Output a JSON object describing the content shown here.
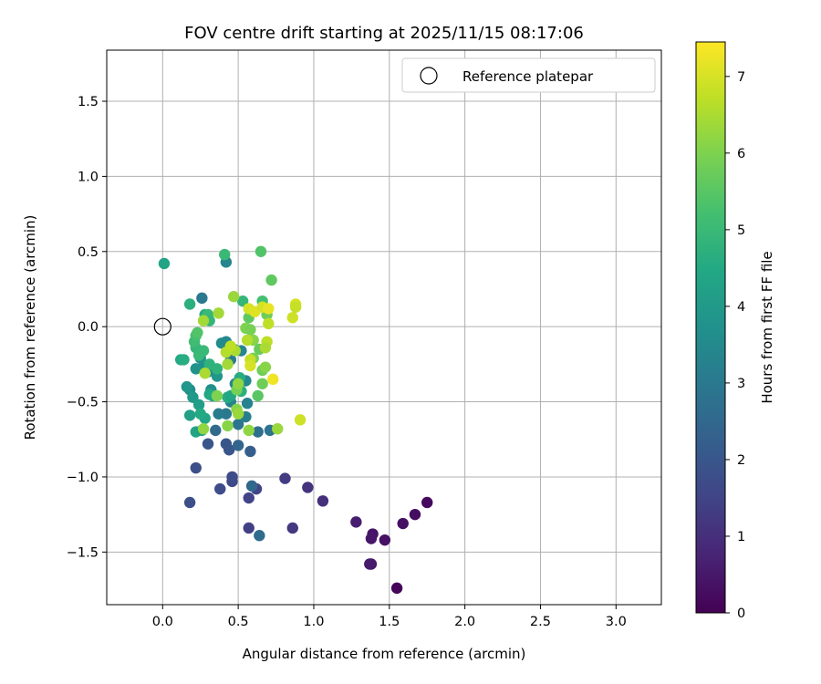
{
  "chart_data": {
    "type": "scatter",
    "title": "FOV centre drift starting at 2025/11/15 08:17:06",
    "xlabel": "Angular distance from reference (arcmin)",
    "ylabel": "Rotation from reference (arcmin)",
    "xlim": [
      -0.37,
      3.3
    ],
    "ylim": [
      -1.85,
      1.84
    ],
    "xticks": [
      0.0,
      0.5,
      1.0,
      1.5,
      2.0,
      2.5,
      3.0
    ],
    "xtick_labels": [
      "0.0",
      "0.5",
      "1.0",
      "1.5",
      "2.0",
      "2.5",
      "3.0"
    ],
    "yticks": [
      -1.5,
      -1.0,
      -0.5,
      0.0,
      0.5,
      1.0,
      1.5
    ],
    "ytick_labels": [
      "−1.5",
      "−1.0",
      "−0.5",
      "0.0",
      "0.5",
      "1.0",
      "1.5"
    ],
    "grid": true,
    "legend": {
      "position": "top-right",
      "entries": [
        "Reference platepar"
      ]
    },
    "reference_point": {
      "x": 0.0,
      "y": 0.0,
      "marker": "hollow-circle"
    },
    "colorbar": {
      "label": "Hours from first FF file",
      "range": [
        0,
        7.45
      ],
      "ticks": [
        0,
        1,
        2,
        3,
        4,
        5,
        6,
        7
      ],
      "tick_labels": [
        "0",
        "1",
        "2",
        "3",
        "4",
        "5",
        "6",
        "7"
      ],
      "colormap": "viridis"
    },
    "points": [
      {
        "x": 1.55,
        "y": -1.74,
        "t": 0.1
      },
      {
        "x": 1.75,
        "y": -1.17,
        "t": 0.2
      },
      {
        "x": 1.67,
        "y": -1.25,
        "t": 0.25
      },
      {
        "x": 1.59,
        "y": -1.31,
        "t": 0.3
      },
      {
        "x": 1.47,
        "y": -1.42,
        "t": 0.35
      },
      {
        "x": 1.39,
        "y": -1.38,
        "t": 0.4
      },
      {
        "x": 1.38,
        "y": -1.41,
        "t": 0.45
      },
      {
        "x": 1.38,
        "y": -1.58,
        "t": 0.5
      },
      {
        "x": 1.37,
        "y": -1.58,
        "t": 0.55
      },
      {
        "x": 1.28,
        "y": -1.3,
        "t": 0.6
      },
      {
        "x": 1.06,
        "y": -1.16,
        "t": 1.0
      },
      {
        "x": 0.96,
        "y": -1.07,
        "t": 1.1
      },
      {
        "x": 0.86,
        "y": -1.34,
        "t": 1.2
      },
      {
        "x": 0.81,
        "y": -1.01,
        "t": 1.3
      },
      {
        "x": 0.57,
        "y": -1.34,
        "t": 1.4
      },
      {
        "x": 0.57,
        "y": -1.14,
        "t": 1.5
      },
      {
        "x": 0.62,
        "y": -1.08,
        "t": 1.5
      },
      {
        "x": 0.46,
        "y": -1.03,
        "t": 1.6
      },
      {
        "x": 0.46,
        "y": -1.0,
        "t": 1.7
      },
      {
        "x": 0.38,
        "y": -1.08,
        "t": 1.7
      },
      {
        "x": 0.22,
        "y": -0.94,
        "t": 1.8
      },
      {
        "x": 0.18,
        "y": -1.17,
        "t": 1.8
      },
      {
        "x": 0.64,
        "y": -1.39,
        "t": 2.6
      },
      {
        "x": 0.59,
        "y": -1.06,
        "t": 2.5
      },
      {
        "x": 0.44,
        "y": -0.82,
        "t": 2.0
      },
      {
        "x": 0.42,
        "y": -0.78,
        "t": 2.0
      },
      {
        "x": 0.3,
        "y": -0.78,
        "t": 2.0
      },
      {
        "x": 0.5,
        "y": -0.79,
        "t": 2.4
      },
      {
        "x": 0.58,
        "y": -0.83,
        "t": 2.2
      },
      {
        "x": 0.35,
        "y": -0.69,
        "t": 2.6
      },
      {
        "x": 0.63,
        "y": -0.7,
        "t": 2.7
      },
      {
        "x": 0.71,
        "y": -0.69,
        "t": 2.8
      },
      {
        "x": 0.5,
        "y": -0.65,
        "t": 2.9
      },
      {
        "x": 0.42,
        "y": -0.58,
        "t": 3.0
      },
      {
        "x": 0.37,
        "y": -0.58,
        "t": 3.1
      },
      {
        "x": 0.55,
        "y": -0.6,
        "t": 3.2
      },
      {
        "x": 0.45,
        "y": -0.5,
        "t": 3.3
      },
      {
        "x": 0.56,
        "y": -0.51,
        "t": 3.3
      },
      {
        "x": 0.48,
        "y": -0.38,
        "t": 3.4
      },
      {
        "x": 0.55,
        "y": -0.36,
        "t": 3.5
      },
      {
        "x": 0.3,
        "y": -0.3,
        "t": 3.6
      },
      {
        "x": 0.27,
        "y": -0.27,
        "t": 3.7
      },
      {
        "x": 0.22,
        "y": -0.28,
        "t": 3.8
      },
      {
        "x": 0.25,
        "y": -0.21,
        "t": 3.8
      },
      {
        "x": 0.26,
        "y": 0.19,
        "t": 3.0
      },
      {
        "x": 0.42,
        "y": 0.43,
        "t": 3.4
      },
      {
        "x": 0.45,
        "y": -0.22,
        "t": 3.1
      },
      {
        "x": 0.47,
        "y": -0.15,
        "t": 3.2
      },
      {
        "x": 0.39,
        "y": -0.11,
        "t": 3.6
      },
      {
        "x": 0.42,
        "y": -0.1,
        "t": 3.5
      },
      {
        "x": 0.52,
        "y": -0.16,
        "t": 3.4
      },
      {
        "x": 0.36,
        "y": -0.33,
        "t": 3.9
      },
      {
        "x": 0.32,
        "y": -0.42,
        "t": 3.7
      },
      {
        "x": 0.18,
        "y": -0.42,
        "t": 3.7
      },
      {
        "x": 0.16,
        "y": -0.4,
        "t": 3.9
      },
      {
        "x": 0.2,
        "y": -0.47,
        "t": 4.0
      },
      {
        "x": 0.24,
        "y": -0.52,
        "t": 4.1
      },
      {
        "x": 0.18,
        "y": -0.59,
        "t": 4.2
      },
      {
        "x": 0.22,
        "y": -0.7,
        "t": 4.3
      },
      {
        "x": 0.26,
        "y": -0.69,
        "t": 4.1
      },
      {
        "x": 0.28,
        "y": -0.61,
        "t": 4.4
      },
      {
        "x": 0.25,
        "y": -0.58,
        "t": 4.5
      },
      {
        "x": 0.31,
        "y": -0.45,
        "t": 4.4
      },
      {
        "x": 0.33,
        "y": -0.46,
        "t": 4.5
      },
      {
        "x": 0.43,
        "y": -0.47,
        "t": 4.6
      },
      {
        "x": 0.45,
        "y": -0.46,
        "t": 4.4
      },
      {
        "x": 0.52,
        "y": -0.43,
        "t": 4.7
      },
      {
        "x": 0.51,
        "y": -0.34,
        "t": 4.6
      },
      {
        "x": 0.36,
        "y": -0.28,
        "t": 4.8
      },
      {
        "x": 0.31,
        "y": -0.25,
        "t": 4.8
      },
      {
        "x": 0.22,
        "y": -0.14,
        "t": 4.9
      },
      {
        "x": 0.24,
        "y": -0.19,
        "t": 5.0
      },
      {
        "x": 0.27,
        "y": -0.16,
        "t": 5.0
      },
      {
        "x": 0.21,
        "y": -0.1,
        "t": 5.1
      },
      {
        "x": 0.22,
        "y": -0.06,
        "t": 5.2
      },
      {
        "x": 0.23,
        "y": -0.04,
        "t": 5.4
      },
      {
        "x": 0.12,
        "y": -0.22,
        "t": 4.5
      },
      {
        "x": 0.14,
        "y": -0.22,
        "t": 4.6
      },
      {
        "x": 0.18,
        "y": 0.15,
        "t": 4.7
      },
      {
        "x": 0.01,
        "y": 0.42,
        "t": 4.3
      },
      {
        "x": 0.28,
        "y": 0.08,
        "t": 4.6
      },
      {
        "x": 0.3,
        "y": 0.08,
        "t": 5.0
      },
      {
        "x": 0.31,
        "y": 0.04,
        "t": 4.9
      },
      {
        "x": 0.41,
        "y": 0.48,
        "t": 5.0
      },
      {
        "x": 0.65,
        "y": 0.5,
        "t": 5.4
      },
      {
        "x": 0.72,
        "y": 0.31,
        "t": 5.6
      },
      {
        "x": 0.53,
        "y": 0.17,
        "t": 4.9
      },
      {
        "x": 0.66,
        "y": 0.17,
        "t": 5.2
      },
      {
        "x": 0.69,
        "y": 0.08,
        "t": 5.8
      },
      {
        "x": 0.57,
        "y": 0.06,
        "t": 5.6
      },
      {
        "x": 0.55,
        "y": -0.01,
        "t": 6.0
      },
      {
        "x": 0.58,
        "y": -0.02,
        "t": 5.9
      },
      {
        "x": 0.6,
        "y": -0.09,
        "t": 6.1
      },
      {
        "x": 0.64,
        "y": -0.15,
        "t": 5.7
      },
      {
        "x": 0.6,
        "y": -0.21,
        "t": 5.9
      },
      {
        "x": 0.66,
        "y": -0.29,
        "t": 5.8
      },
      {
        "x": 0.68,
        "y": -0.27,
        "t": 6.1
      },
      {
        "x": 0.63,
        "y": -0.46,
        "t": 5.5
      },
      {
        "x": 0.66,
        "y": -0.38,
        "t": 5.8
      },
      {
        "x": 0.49,
        "y": -0.42,
        "t": 5.9
      },
      {
        "x": 0.5,
        "y": -0.38,
        "t": 6.2
      },
      {
        "x": 0.49,
        "y": -0.55,
        "t": 6.1
      },
      {
        "x": 0.5,
        "y": -0.58,
        "t": 6.3
      },
      {
        "x": 0.43,
        "y": -0.66,
        "t": 6.1
      },
      {
        "x": 0.57,
        "y": -0.69,
        "t": 6.2
      },
      {
        "x": 0.76,
        "y": -0.68,
        "t": 6.3
      },
      {
        "x": 0.27,
        "y": -0.68,
        "t": 6.2
      },
      {
        "x": 0.28,
        "y": -0.31,
        "t": 6.5
      },
      {
        "x": 0.36,
        "y": -0.46,
        "t": 6.0
      },
      {
        "x": 0.43,
        "y": -0.25,
        "t": 6.4
      },
      {
        "x": 0.48,
        "y": -0.16,
        "t": 6.5
      },
      {
        "x": 0.42,
        "y": -0.17,
        "t": 6.6
      },
      {
        "x": 0.45,
        "y": -0.13,
        "t": 6.7
      },
      {
        "x": 0.47,
        "y": 0.2,
        "t": 6.3
      },
      {
        "x": 0.37,
        "y": 0.09,
        "t": 6.4
      },
      {
        "x": 0.27,
        "y": 0.04,
        "t": 6.4
      },
      {
        "x": 0.56,
        "y": -0.09,
        "t": 6.6
      },
      {
        "x": 0.58,
        "y": -0.22,
        "t": 6.8
      },
      {
        "x": 0.58,
        "y": -0.26,
        "t": 7.0
      },
      {
        "x": 0.69,
        "y": -0.1,
        "t": 6.7
      },
      {
        "x": 0.68,
        "y": -0.14,
        "t": 6.5
      },
      {
        "x": 0.7,
        "y": 0.02,
        "t": 6.7
      },
      {
        "x": 0.57,
        "y": 0.12,
        "t": 7.0
      },
      {
        "x": 0.61,
        "y": 0.1,
        "t": 7.1
      },
      {
        "x": 0.66,
        "y": 0.13,
        "t": 7.0
      },
      {
        "x": 0.7,
        "y": 0.12,
        "t": 7.2
      },
      {
        "x": 0.73,
        "y": -0.35,
        "t": 7.3
      },
      {
        "x": 0.86,
        "y": 0.06,
        "t": 6.9
      },
      {
        "x": 0.88,
        "y": 0.15,
        "t": 7.0
      },
      {
        "x": 0.88,
        "y": 0.13,
        "t": 6.8
      },
      {
        "x": 0.91,
        "y": -0.62,
        "t": 6.9
      }
    ]
  }
}
